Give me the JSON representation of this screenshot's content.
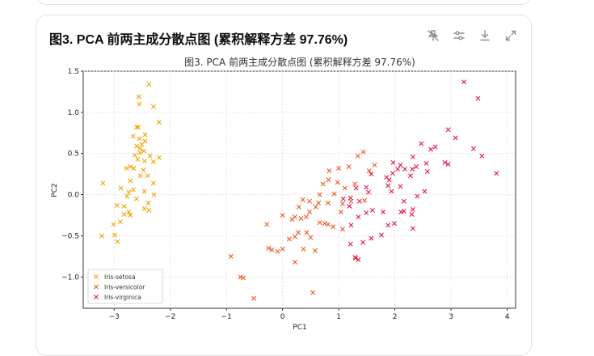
{
  "card": {
    "title": "图3. PCA 前两主成分散点图 (累积解释方差 97.76%)"
  },
  "toolbar": {
    "icons": [
      "pin-off-icon",
      "sliders-icon",
      "download-icon",
      "expand-icon"
    ]
  },
  "chart_data": {
    "type": "scatter",
    "title": "图3. PCA 前两主成分散点图 (累积解释方差 97.76%)",
    "xlabel": "PC1",
    "ylabel": "PC2",
    "xlim": [
      -3.55,
      4.15
    ],
    "ylim": [
      -1.38,
      1.5
    ],
    "xticks": [
      -3,
      -2,
      -1,
      0,
      1,
      2,
      3,
      4
    ],
    "yticks": [
      1.5,
      1.0,
      0.5,
      0.0,
      -0.5,
      -1.0
    ],
    "xtick_labels": [
      "−3",
      "−2",
      "−1",
      "0",
      "1",
      "2",
      "3",
      "4"
    ],
    "ytick_labels": [
      "1.5",
      "1.0",
      "0.5",
      "0.0",
      "−0.5",
      "−1.0"
    ],
    "grid": true,
    "legend_position": "lower-left",
    "series": [
      {
        "name": "Iris-setosa",
        "color": "#f5a300",
        "points": [
          [
            -2.38,
            1.34
          ],
          [
            -2.56,
            1.19
          ],
          [
            -2.55,
            1.1
          ],
          [
            -2.3,
            1.07
          ],
          [
            -2.2,
            0.88
          ],
          [
            -2.6,
            0.82
          ],
          [
            -2.57,
            0.82
          ],
          [
            -2.45,
            0.73
          ],
          [
            -2.66,
            0.71
          ],
          [
            -2.55,
            0.68
          ],
          [
            -2.45,
            0.65
          ],
          [
            -2.51,
            0.61
          ],
          [
            -2.6,
            0.59
          ],
          [
            -2.54,
            0.56
          ],
          [
            -2.47,
            0.53
          ],
          [
            -2.54,
            0.51
          ],
          [
            -2.63,
            0.48
          ],
          [
            -2.36,
            0.47
          ],
          [
            -2.2,
            0.45
          ],
          [
            -2.58,
            0.43
          ],
          [
            -2.46,
            0.41
          ],
          [
            -2.3,
            0.4
          ],
          [
            -2.71,
            0.34
          ],
          [
            -2.78,
            0.32
          ],
          [
            -2.65,
            0.32
          ],
          [
            -2.48,
            0.3
          ],
          [
            -2.53,
            0.23
          ],
          [
            -2.4,
            0.23
          ],
          [
            -2.71,
            0.17
          ],
          [
            -2.3,
            0.14
          ],
          [
            -2.88,
            0.08
          ],
          [
            -2.66,
            0.06
          ],
          [
            -2.46,
            0.04
          ],
          [
            -2.74,
            0.03
          ],
          [
            -2.29,
            0.0
          ],
          [
            -2.77,
            -0.02
          ],
          [
            -2.6,
            -0.05
          ],
          [
            -2.39,
            -0.1
          ],
          [
            -2.95,
            -0.13
          ],
          [
            -2.82,
            -0.14
          ],
          [
            -2.46,
            -0.17
          ],
          [
            -2.38,
            -0.19
          ],
          [
            -2.74,
            -0.21
          ],
          [
            -2.82,
            -0.24
          ],
          [
            -2.71,
            -0.25
          ],
          [
            -2.89,
            -0.33
          ],
          [
            -3.01,
            -0.36
          ],
          [
            -2.99,
            -0.49
          ],
          [
            -2.94,
            -0.57
          ],
          [
            -2.85,
            -0.94
          ],
          [
            -3.2,
            0.14
          ],
          [
            -3.22,
            -0.5
          ]
        ]
      },
      {
        "name": "Iris-versicolor",
        "color": "#f05a21",
        "points": [
          [
            1.34,
            0.47
          ],
          [
            1.44,
            0.52
          ],
          [
            1.64,
            0.36
          ],
          [
            1.54,
            0.29
          ],
          [
            1.0,
            0.32
          ],
          [
            1.18,
            0.34
          ],
          [
            0.83,
            0.29
          ],
          [
            0.82,
            0.18
          ],
          [
            0.98,
            0.15
          ],
          [
            0.72,
            0.13
          ],
          [
            1.11,
            0.08
          ],
          [
            0.66,
            0.0
          ],
          [
            0.81,
            -0.1
          ],
          [
            0.92,
            0.01
          ],
          [
            1.22,
            -0.08
          ],
          [
            1.29,
            0.13
          ],
          [
            1.46,
            -0.07
          ],
          [
            0.64,
            -0.1
          ],
          [
            0.36,
            -0.06
          ],
          [
            0.48,
            -0.08
          ],
          [
            0.29,
            -0.15
          ],
          [
            0.22,
            -0.27
          ],
          [
            0.42,
            -0.27
          ],
          [
            0.33,
            -0.29
          ],
          [
            0.0,
            -0.25
          ],
          [
            0.17,
            -0.3
          ],
          [
            1.07,
            -0.11
          ],
          [
            1.04,
            -0.21
          ],
          [
            0.75,
            -0.35
          ],
          [
            0.66,
            -0.34
          ],
          [
            0.9,
            -0.39
          ],
          [
            1.07,
            -0.42
          ],
          [
            0.28,
            -0.46
          ],
          [
            0.12,
            -0.54
          ],
          [
            0.37,
            -0.66
          ],
          [
            0.58,
            -0.68
          ],
          [
            0.22,
            -0.51
          ],
          [
            -0.25,
            -0.65
          ],
          [
            0.0,
            -0.66
          ],
          [
            -0.19,
            -0.67
          ],
          [
            -0.09,
            -0.69
          ],
          [
            0.43,
            -0.46
          ],
          [
            1.29,
            -0.76
          ],
          [
            0.81,
            -0.36
          ],
          [
            0.5,
            -0.52
          ],
          [
            0.22,
            -0.82
          ],
          [
            -0.92,
            -0.75
          ],
          [
            -0.75,
            -1.0
          ],
          [
            -0.7,
            -1.01
          ],
          [
            -0.51,
            -1.26
          ],
          [
            -0.28,
            -0.36
          ],
          [
            0.54,
            -1.19
          ],
          [
            0.59,
            -0.15
          ],
          [
            0.48,
            -0.21
          ]
        ]
      },
      {
        "name": "Iris-virginica",
        "color": "#e8174f",
        "points": [
          [
            3.23,
            1.37
          ],
          [
            3.48,
            1.17
          ],
          [
            3.08,
            0.69
          ],
          [
            2.95,
            0.79
          ],
          [
            2.72,
            0.58
          ],
          [
            2.47,
            0.62
          ],
          [
            2.64,
            0.55
          ],
          [
            3.4,
            0.56
          ],
          [
            3.55,
            0.47
          ],
          [
            3.81,
            0.26
          ],
          [
            2.89,
            0.39
          ],
          [
            2.95,
            0.37
          ],
          [
            2.32,
            0.46
          ],
          [
            2.56,
            0.38
          ],
          [
            2.38,
            0.34
          ],
          [
            2.31,
            0.31
          ],
          [
            2.18,
            0.31
          ],
          [
            2.05,
            0.31
          ],
          [
            1.97,
            0.39
          ],
          [
            1.85,
            0.21
          ],
          [
            1.96,
            0.26
          ],
          [
            1.58,
            0.25
          ],
          [
            1.9,
            0.18
          ],
          [
            2.1,
            0.1
          ],
          [
            1.88,
            0.11
          ],
          [
            2.28,
            0.23
          ],
          [
            1.94,
            0.04
          ],
          [
            1.31,
            0.08
          ],
          [
            1.49,
            0.09
          ],
          [
            1.53,
            0.03
          ],
          [
            1.21,
            -0.04
          ],
          [
            1.08,
            -0.05
          ],
          [
            1.37,
            -0.08
          ],
          [
            1.6,
            -0.19
          ],
          [
            2.16,
            -0.08
          ],
          [
            2.4,
            -0.02
          ],
          [
            2.53,
            0.04
          ],
          [
            2.32,
            -0.18
          ],
          [
            1.79,
            -0.21
          ],
          [
            2.11,
            -0.21
          ],
          [
            2.16,
            -0.2
          ],
          [
            2.3,
            -0.24
          ],
          [
            1.19,
            -0.14
          ],
          [
            1.49,
            -0.22
          ],
          [
            1.35,
            -0.27
          ],
          [
            1.22,
            -0.37
          ],
          [
            1.58,
            -0.53
          ],
          [
            1.76,
            -0.49
          ],
          [
            1.43,
            -0.58
          ],
          [
            1.21,
            -0.6
          ],
          [
            1.3,
            -0.77
          ],
          [
            1.35,
            -0.79
          ],
          [
            1.88,
            -0.37
          ],
          [
            1.99,
            -0.35
          ],
          [
            2.32,
            -0.41
          ],
          [
            2.58,
            0.28
          ],
          [
            2.1,
            0.36
          ]
        ]
      }
    ]
  }
}
